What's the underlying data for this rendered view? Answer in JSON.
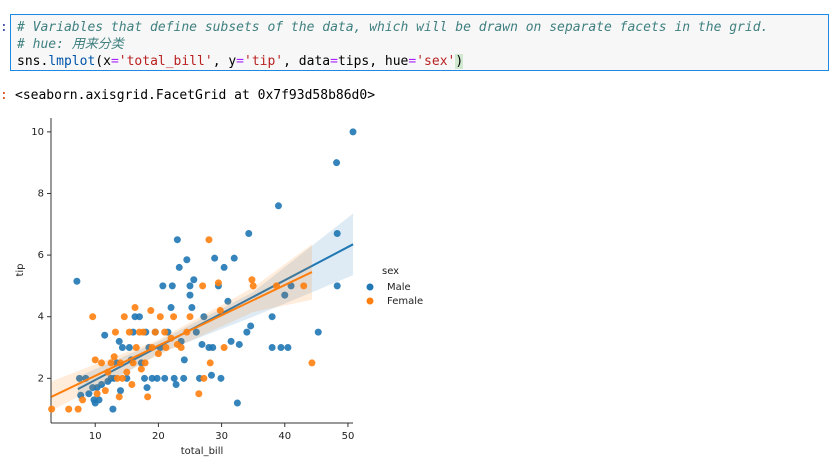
{
  "code": {
    "lines": [
      {
        "tokens": [
          {
            "text": "# Variables that define subsets of the data, which will be drawn on separate facets in the grid.",
            "kind": "comment"
          }
        ]
      },
      {
        "tokens": [
          {
            "text": "# hue: 用来分类",
            "kind": "comment"
          }
        ]
      },
      {
        "tokens": [
          {
            "text": "sns",
            "kind": "plain"
          },
          {
            "text": ".",
            "kind": "plain"
          },
          {
            "text": "lmplot",
            "kind": "func"
          },
          {
            "text": "(",
            "kind": "plain"
          },
          {
            "text": "x",
            "kind": "plain"
          },
          {
            "text": "=",
            "kind": "op"
          },
          {
            "text": "'total_bill'",
            "kind": "string"
          },
          {
            "text": ", y",
            "kind": "plain"
          },
          {
            "text": "=",
            "kind": "op"
          },
          {
            "text": "'tip'",
            "kind": "string"
          },
          {
            "text": ", data",
            "kind": "plain"
          },
          {
            "text": "=",
            "kind": "op"
          },
          {
            "text": "tips, hue",
            "kind": "plain"
          },
          {
            "text": "=",
            "kind": "op"
          },
          {
            "text": "'sex'",
            "kind": "string"
          },
          {
            "text": ")",
            "kind": "paren"
          }
        ]
      }
    ]
  },
  "output": {
    "text": "<seaborn.axisgrid.FacetGrid at 0x7f93d58b86d0>"
  },
  "chart_data": {
    "type": "scatter",
    "x_label": "total_bill",
    "y_label": "tip",
    "legend_title": "sex",
    "legend_position": "right",
    "xlim": [
      3,
      50.8
    ],
    "xticks": [
      10,
      20,
      30,
      40,
      50
    ],
    "ylim": [
      0.55,
      10.45
    ],
    "yticks": [
      2,
      4,
      6,
      8,
      10
    ],
    "series": [
      {
        "name": "Male",
        "color": "#1f77b4",
        "x": [
          7.1,
          7.5,
          7.7,
          8.5,
          9,
          9.6,
          9.8,
          10,
          10.3,
          10.6,
          11,
          11.5,
          12,
          12.5,
          12.8,
          13,
          13.4,
          13.8,
          14,
          14.3,
          15,
          15.4,
          15.7,
          16,
          16.3,
          17,
          17.3,
          17.8,
          18,
          18.2,
          18.5,
          19,
          19.5,
          19.8,
          20.3,
          20.7,
          21,
          21.5,
          22,
          22.2,
          22.5,
          22.8,
          23,
          23.3,
          23.6,
          24,
          24.1,
          24.5,
          25,
          25,
          25.3,
          25.6,
          26,
          26.5,
          26.9,
          27.2,
          28,
          28.4,
          28.6,
          28.9,
          29.5,
          29.9,
          30.4,
          31,
          31.5,
          32,
          32.5,
          32.8,
          34,
          34.3,
          34.6,
          38,
          38,
          39,
          39.4,
          40,
          40.5,
          41,
          45.3,
          48.2,
          48.3,
          48.3,
          50.8
        ],
        "values": [
          5.15,
          2,
          1.45,
          2,
          1.5,
          1.7,
          1.3,
          1.2,
          1.7,
          1.3,
          1.8,
          3.4,
          1.9,
          2,
          1,
          2,
          2.5,
          3.2,
          1.6,
          3,
          2,
          3,
          2.6,
          3.5,
          4,
          4,
          2.5,
          2,
          3.5,
          1.7,
          3,
          2,
          3.5,
          2,
          3,
          5,
          2,
          3.5,
          4.3,
          5,
          2,
          1.8,
          6.5,
          5.6,
          3.2,
          2,
          2.6,
          5.85,
          4.7,
          5,
          4.3,
          5.2,
          3.5,
          2,
          3.1,
          4,
          3,
          2.1,
          3,
          5.9,
          5,
          2,
          5.6,
          4.5,
          3.2,
          5.9,
          1.2,
          3.1,
          3.5,
          6.7,
          3.7,
          3,
          4,
          7.6,
          3,
          4.7,
          3,
          5,
          3.5,
          9,
          6.7,
          5,
          10
        ],
        "fit": {
          "x": [
            7.25,
            50.81
          ],
          "values": [
            1.65,
            6.35
          ],
          "ci_x": [
            7.25,
            20,
            35,
            50.81
          ],
          "ci_lower": [
            1.25,
            2.8,
            4.0,
            5.35
          ],
          "ci_upper": [
            2.05,
            3.2,
            4.8,
            7.35
          ]
        }
      },
      {
        "name": "Female",
        "color": "#ff7f0e",
        "x": [
          3.1,
          5.8,
          7.3,
          8,
          9.6,
          10,
          10.3,
          11,
          11.6,
          12,
          12.5,
          13,
          13.2,
          13.5,
          13.8,
          14,
          14.3,
          14.6,
          15,
          15.4,
          15.8,
          16,
          16.3,
          16.5,
          17,
          17.3,
          17.6,
          17.9,
          18.3,
          18.8,
          19,
          19.5,
          20,
          20.3,
          21,
          21.2,
          22,
          22.4,
          23,
          23.6,
          24.5,
          25,
          26.4,
          27,
          27.2,
          28,
          28.2,
          29.5,
          29.8,
          30.4,
          34.8,
          35,
          38.7,
          43,
          44.3
        ],
        "values": [
          1,
          1,
          1,
          1.3,
          4,
          2.6,
          1.5,
          2.5,
          1.6,
          2.2,
          2.5,
          2.7,
          3.5,
          2,
          1.4,
          2.5,
          2,
          4,
          2.2,
          3.5,
          1.8,
          2.5,
          4.3,
          3,
          3.5,
          2.3,
          3.5,
          2.5,
          1.4,
          4.2,
          3,
          3.5,
          2.8,
          4,
          3.5,
          3,
          3.3,
          4,
          3.1,
          3,
          3.5,
          4,
          1.5,
          5,
          2,
          6.5,
          2.5,
          5.1,
          4.2,
          3,
          5.2,
          5,
          5,
          5,
          2.5
        ],
        "fit": {
          "x": [
            3.07,
            44.3
          ],
          "values": [
            1.4,
            5.45
          ],
          "ci_x": [
            3.07,
            20,
            35,
            44.3
          ],
          "ci_lower": [
            0.95,
            2.75,
            4.15,
            4.55
          ],
          "ci_upper": [
            1.9,
            3.25,
            4.95,
            6.35
          ]
        }
      }
    ]
  }
}
